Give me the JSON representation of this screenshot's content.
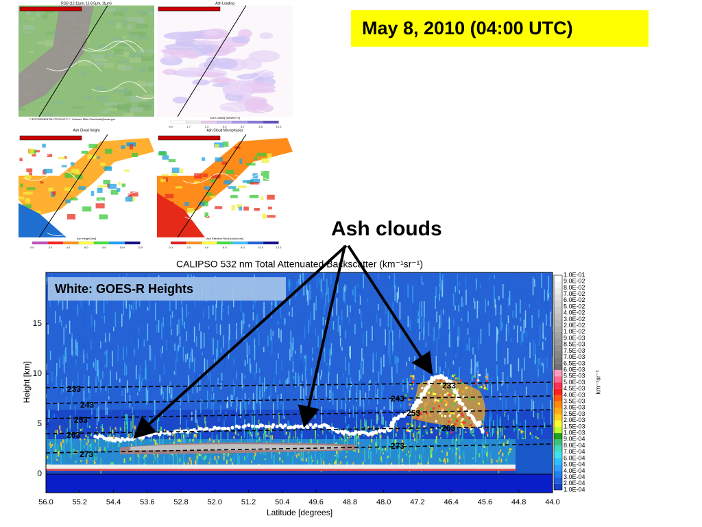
{
  "date_banner": "May 8, 2010 (04:00 UTC)",
  "annotation": "Ash clouds",
  "panels": [
    {
      "title": "RGB (12-11μm, 11-8.5μm, 11μm)",
      "footer": "***EXPERIMENTAL PRODUCT***. Contact: Mike.Pavolonis@noaa.gov"
    },
    {
      "title": "Ash Loading",
      "colorbar_label": "Ash Loading [tons/km^2]",
      "colorbar_ticks": [
        "0.0",
        "1.7",
        "3.3",
        "5.0",
        "6.7",
        "8.3",
        "10.0"
      ]
    },
    {
      "title": "Ash Cloud Height",
      "colorbar_label": "Ash Height [km]",
      "colorbar_ticks": [
        "0.0",
        "2.0",
        "4.0",
        "6.0",
        "8.0",
        "10.0",
        "12.0"
      ]
    },
    {
      "title": "Ash Cloud Microphysics",
      "colorbar_label": "Ash Effective Radius [microns]",
      "colorbar_ticks": [
        "0.0",
        "2.0",
        "4.0",
        "6.0",
        "8.0",
        "10.0",
        "12.0"
      ]
    }
  ],
  "plot": {
    "title": "CALIPSO 532 nm Total Attenuated Backscatter (km⁻¹sr⁻¹)",
    "legend": "White: GOES-R Heights",
    "x_label": "Latitude [degrees]",
    "y_label": "Height [km]",
    "x_ticks": [
      "56.0",
      "55.2",
      "54.4",
      "53.6",
      "52.8",
      "52.0",
      "51.2",
      "50.4",
      "49.6",
      "48.8",
      "48.0",
      "47.2",
      "46.4",
      "45.6",
      "44.8",
      "44.0"
    ],
    "y_ticks": [
      "0",
      "5",
      "10",
      "15"
    ],
    "colorbar_unit": "km⁻¹sr⁻¹",
    "colorbar_ticks": [
      "1.0E-01",
      "9.0E-02",
      "8.0E-02",
      "7.0E-02",
      "6.0E-02",
      "5.0E-02",
      "4.0E-02",
      "3.0E-02",
      "2.0E-02",
      "1.0E-02",
      "9.0E-03",
      "8.5E-03",
      "7.5E-03",
      "7.0E-03",
      "6.5E-03",
      "6.0E-03",
      "5.5E-03",
      "5.0E-03",
      "4.5E-03",
      "4.0E-03",
      "3.5E-03",
      "3.0E-03",
      "2.5E-03",
      "2.0E-03",
      "1.5E-03",
      "1.0E-03",
      "9.0E-04",
      "8.0E-04",
      "7.0E-04",
      "6.0E-04",
      "5.0E-04",
      "4.0E-04",
      "3.0E-04",
      "2.0E-04",
      "1.0E-04"
    ],
    "temperature_labels_left": [
      "233",
      "243",
      "253",
      "263",
      "273"
    ],
    "temperature_labels_right": [
      "233",
      "243",
      "253",
      "263",
      "273"
    ]
  }
}
